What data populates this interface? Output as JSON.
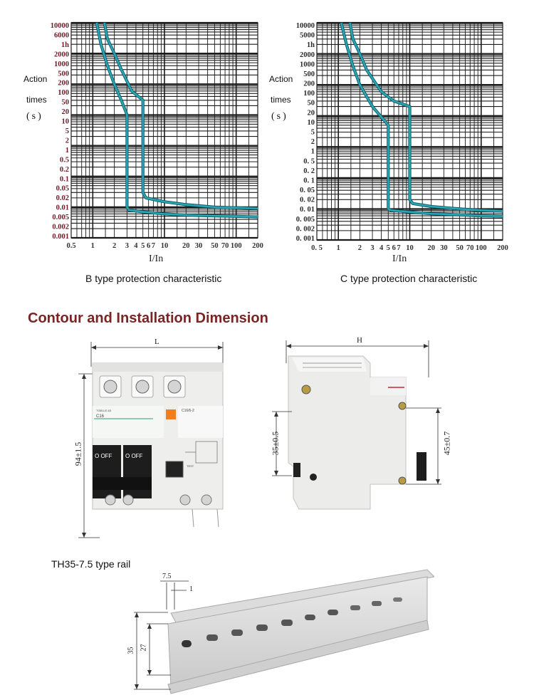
{
  "chart_data": [
    {
      "type": "line",
      "title": "B type protection characteristic",
      "ylabel_lines": [
        "Action",
        "times",
        "(s)"
      ],
      "xlabel": "I/In",
      "y_scale": "log",
      "x_scale": "log",
      "y_ticks": [
        "10000",
        "6000",
        "1h",
        "2000",
        "1000",
        "500",
        "200",
        "100",
        "50",
        "20",
        "10",
        "5",
        "2",
        "1",
        "0.5",
        "0.2",
        "0.1",
        "0.05",
        "0.02",
        "0.01",
        "0.005",
        "0.002",
        "0.001"
      ],
      "x_ticks": [
        "0.5",
        "1",
        "2",
        "3",
        "4",
        "5",
        "6",
        "7",
        "10",
        "20",
        "30",
        "50",
        "70",
        "100",
        "200"
      ],
      "ylim": [
        0.001,
        10000
      ],
      "xlim": [
        0.5,
        200
      ],
      "series": [
        {
          "x": [
            1.13,
            1.3,
            1.6,
            2.0,
            2.5,
            3.0,
            3.0,
            3.2,
            5,
            10,
            20,
            50,
            100,
            200
          ],
          "y": [
            10000,
            2000,
            400,
            100,
            30,
            10,
            0.01,
            0.008,
            0.007,
            0.006,
            0.0055,
            0.0052,
            0.005,
            0.0048
          ]
        },
        {
          "x": [
            1.45,
            1.6,
            2.0,
            2.5,
            3.5,
            5.0,
            5.0,
            5.5,
            10,
            20,
            50,
            100,
            200
          ],
          "y": [
            10000,
            3000,
            1000,
            300,
            60,
            30,
            0.03,
            0.02,
            0.015,
            0.012,
            0.01,
            0.0095,
            0.009
          ]
        }
      ],
      "colors": {
        "curve": "#2aa6b4",
        "grid": "#1b1b1b",
        "ytick": "#6e1a28"
      }
    },
    {
      "type": "line",
      "title": "C type protection characteristic",
      "ylabel_lines": [
        "Action",
        "times",
        "(s)"
      ],
      "xlabel": "I/In",
      "y_scale": "log",
      "x_scale": "log",
      "y_ticks": [
        "10000",
        "5000",
        "1h",
        "2000",
        "1000",
        "500",
        "200",
        "100",
        "50",
        "20",
        "10",
        "5",
        "2",
        "1",
        "0. 5",
        "0. 2",
        "0. 1",
        "0. 05",
        "0. 02",
        "0. 01",
        "0. 005",
        "0. 002",
        "0. 001"
      ],
      "x_ticks": [
        "0. 5",
        "1",
        "2",
        "3",
        "4",
        "5",
        "6",
        "7",
        "10",
        "20",
        "30",
        "50",
        "70",
        "100",
        "200"
      ],
      "ylim": [
        0.001,
        10000
      ],
      "xlim": [
        0.5,
        200
      ],
      "series": [
        {
          "x": [
            1.1,
            1.3,
            1.6,
            2.0,
            3.0,
            5.0,
            5.0,
            5.5,
            10,
            20,
            50,
            100,
            200
          ],
          "y": [
            10000,
            2000,
            400,
            100,
            20,
            5,
            0.01,
            0.009,
            0.008,
            0.007,
            0.0065,
            0.006,
            0.0058
          ]
        },
        {
          "x": [
            1.45,
            1.6,
            2.0,
            2.5,
            4.0,
            6.0,
            10.0,
            10.0,
            11,
            20,
            50,
            100,
            200
          ],
          "y": [
            10000,
            3000,
            1000,
            300,
            60,
            30,
            20,
            0.02,
            0.015,
            0.012,
            0.01,
            0.009,
            0.0085
          ]
        }
      ],
      "colors": {
        "curve": "#2aa6b4",
        "grid": "#1b1b1b",
        "ytick": "#2a2a2a"
      }
    }
  ],
  "section": {
    "title": "Contour and Installation Dimension",
    "color": "#7a2424"
  },
  "dims": {
    "front_width": "L",
    "front_height": "94±1.5",
    "side_width": "H",
    "side_left": "35±0.5",
    "side_right": "45±0.7",
    "rail_thickness": "7.5",
    "rail_lip": "1",
    "rail_inner": "27",
    "rail_outer": "35"
  },
  "device": {
    "model": "TGB1LE-63",
    "rating": "C16",
    "off1": "O OFF",
    "off2": "O OFF",
    "rcd_model": "C16/6-2",
    "test": "TEST"
  },
  "rail": {
    "title": "TH35-7.5 type rail"
  }
}
